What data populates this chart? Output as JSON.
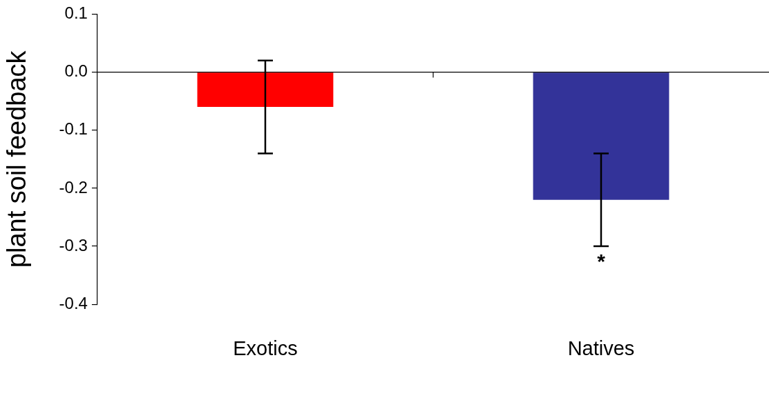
{
  "chart_data": {
    "type": "bar",
    "ylabel": "plant soil feedback",
    "categories": [
      "Exotics",
      "Natives"
    ],
    "values": [
      -0.06,
      -0.22
    ],
    "colors": [
      "#ff0000",
      "#333399"
    ],
    "errors": [
      0.08,
      0.08
    ],
    "ylim": [
      -0.4,
      0.1
    ],
    "yticks": [
      {
        "value": 0.1,
        "label": "0.1"
      },
      {
        "value": 0,
        "label": "0.0"
      },
      -0.1,
      -0.2,
      -0.3,
      -0.4
    ],
    "grid": false,
    "legend": false,
    "ref_lines": [
      {
        "axis": "y",
        "value": 0,
        "color": "#000000"
      }
    ],
    "annotations": [
      "*"
    ]
  }
}
